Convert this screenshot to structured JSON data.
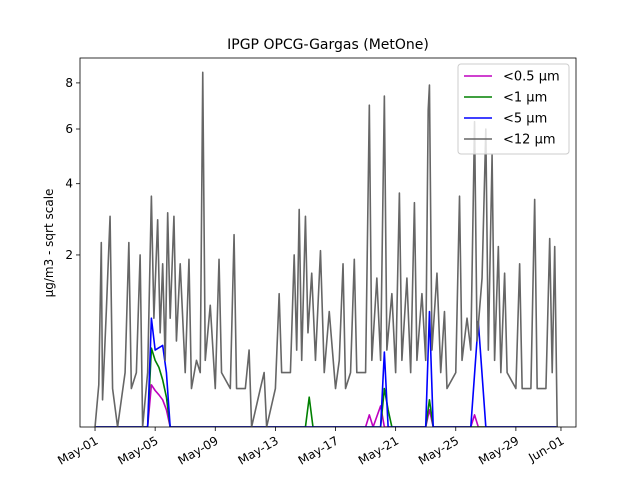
{
  "chart_data": {
    "type": "line",
    "title": "IPGP OPCG-Gargas (MetOne)",
    "xlabel": "",
    "ylabel": "µg/m3 - sqrt scale",
    "y_scale": "sqrt",
    "ylim": [
      0,
      9.2
    ],
    "x_range": [
      "2023-04-30T00:00",
      "2023-06-02T00:00"
    ],
    "x_ticks": [
      {
        "date": "2023-05-01",
        "label": "May-01"
      },
      {
        "date": "2023-05-05",
        "label": "May-05"
      },
      {
        "date": "2023-05-09",
        "label": "May-09"
      },
      {
        "date": "2023-05-13",
        "label": "May-13"
      },
      {
        "date": "2023-05-17",
        "label": "May-17"
      },
      {
        "date": "2023-05-21",
        "label": "May-21"
      },
      {
        "date": "2023-05-25",
        "label": "May-25"
      },
      {
        "date": "2023-05-29",
        "label": "May-29"
      },
      {
        "date": "2023-06-01",
        "label": "Jun-01"
      }
    ],
    "y_ticks": [
      {
        "value": 2,
        "label": "2"
      },
      {
        "value": 4,
        "label": "4"
      },
      {
        "value": 6,
        "label": "6"
      },
      {
        "value": 8,
        "label": "8"
      }
    ],
    "legend_position": "top-right",
    "grid": false,
    "series": [
      {
        "name": "<0.5 µm",
        "color": "#bf00bf",
        "points": [
          [
            "2023-05-01T00:00",
            0.0
          ],
          [
            "2023-05-04T12:00",
            0.0
          ],
          [
            "2023-05-04T18:00",
            0.12
          ],
          [
            "2023-05-05T00:00",
            0.09
          ],
          [
            "2023-05-05T06:00",
            0.07
          ],
          [
            "2023-05-05T12:00",
            0.05
          ],
          [
            "2023-05-05T18:00",
            0.02
          ],
          [
            "2023-05-06T00:00",
            0.0
          ],
          [
            "2023-05-19T00:00",
            0.0
          ],
          [
            "2023-05-19T06:00",
            0.01
          ],
          [
            "2023-05-19T12:00",
            0.0
          ],
          [
            "2023-05-20T00:00",
            0.03
          ],
          [
            "2023-05-20T06:00",
            0.0
          ],
          [
            "2023-05-23T00:00",
            0.0
          ],
          [
            "2023-05-23T06:00",
            0.02
          ],
          [
            "2023-05-23T12:00",
            0.0
          ],
          [
            "2023-05-26T00:00",
            0.0
          ],
          [
            "2023-05-26T06:00",
            0.01
          ],
          [
            "2023-05-26T12:00",
            0.0
          ],
          [
            "2023-05-31T18:00",
            0.0
          ]
        ]
      },
      {
        "name": "<1 µm",
        "color": "#008000",
        "points": [
          [
            "2023-05-01T00:00",
            0.0
          ],
          [
            "2023-05-04T12:00",
            0.0
          ],
          [
            "2023-05-04T18:00",
            0.42
          ],
          [
            "2023-05-05T00:00",
            0.3
          ],
          [
            "2023-05-05T06:00",
            0.24
          ],
          [
            "2023-05-05T12:00",
            0.15
          ],
          [
            "2023-05-05T18:00",
            0.06
          ],
          [
            "2023-05-06T00:00",
            0.0
          ],
          [
            "2023-05-15T00:00",
            0.0
          ],
          [
            "2023-05-15T06:00",
            0.06
          ],
          [
            "2023-05-15T12:00",
            0.0
          ],
          [
            "2023-05-20T00:00",
            0.0
          ],
          [
            "2023-05-20T06:00",
            0.1
          ],
          [
            "2023-05-20T12:00",
            0.02
          ],
          [
            "2023-05-20T18:00",
            0.0
          ],
          [
            "2023-05-23T00:00",
            0.0
          ],
          [
            "2023-05-23T06:00",
            0.05
          ],
          [
            "2023-05-23T12:00",
            0.0
          ],
          [
            "2023-05-31T18:00",
            0.0
          ]
        ]
      },
      {
        "name": "<5 µm",
        "color": "#0000ff",
        "points": [
          [
            "2023-05-01T00:00",
            0.0
          ],
          [
            "2023-05-04T12:00",
            0.0
          ],
          [
            "2023-05-04T18:00",
            0.8
          ],
          [
            "2023-05-05T00:00",
            0.4
          ],
          [
            "2023-05-05T12:00",
            0.45
          ],
          [
            "2023-05-05T18:00",
            0.2
          ],
          [
            "2023-05-06T00:00",
            0.0
          ],
          [
            "2023-05-20T00:00",
            0.0
          ],
          [
            "2023-05-20T06:00",
            0.38
          ],
          [
            "2023-05-20T12:00",
            0.0
          ],
          [
            "2023-05-23T00:00",
            0.0
          ],
          [
            "2023-05-23T06:00",
            0.9
          ],
          [
            "2023-05-23T12:00",
            0.0
          ],
          [
            "2023-05-26T00:00",
            0.0
          ],
          [
            "2023-05-26T12:00",
            0.75
          ],
          [
            "2023-05-27T00:00",
            0.0
          ],
          [
            "2023-05-31T18:00",
            0.0
          ]
        ]
      },
      {
        "name": "<12 µm",
        "color": "#666666",
        "points": [
          [
            "2023-05-01T00:00",
            0.0
          ],
          [
            "2023-05-01T06:00",
            0.12
          ],
          [
            "2023-05-01T10:00",
            2.3
          ],
          [
            "2023-05-01T12:00",
            0.05
          ],
          [
            "2023-05-01T18:00",
            0.9
          ],
          [
            "2023-05-02T00:00",
            3.0
          ],
          [
            "2023-05-02T04:00",
            0.1
          ],
          [
            "2023-05-02T12:00",
            0.0
          ],
          [
            "2023-05-03T00:00",
            0.2
          ],
          [
            "2023-05-03T06:00",
            2.3
          ],
          [
            "2023-05-03T10:00",
            0.1
          ],
          [
            "2023-05-03T18:00",
            0.2
          ],
          [
            "2023-05-04T00:00",
            2.0
          ],
          [
            "2023-05-04T04:00",
            0.0
          ],
          [
            "2023-05-04T12:00",
            0.2
          ],
          [
            "2023-05-04T18:00",
            3.6
          ],
          [
            "2023-05-04T22:00",
            0.8
          ],
          [
            "2023-05-05T04:00",
            2.9
          ],
          [
            "2023-05-05T08:00",
            0.6
          ],
          [
            "2023-05-05T12:00",
            1.8
          ],
          [
            "2023-05-05T16:00",
            0.3
          ],
          [
            "2023-05-05T20:00",
            3.1
          ],
          [
            "2023-05-06T00:00",
            0.8
          ],
          [
            "2023-05-06T06:00",
            3.0
          ],
          [
            "2023-05-06T10:00",
            0.5
          ],
          [
            "2023-05-06T16:00",
            1.8
          ],
          [
            "2023-05-07T00:00",
            0.2
          ],
          [
            "2023-05-07T06:00",
            1.9
          ],
          [
            "2023-05-07T10:00",
            0.1
          ],
          [
            "2023-05-07T18:00",
            0.3
          ],
          [
            "2023-05-08T00:00",
            0.2
          ],
          [
            "2023-05-08T04:00",
            8.5
          ],
          [
            "2023-05-08T08:00",
            0.3
          ],
          [
            "2023-05-08T16:00",
            1.0
          ],
          [
            "2023-05-09T00:00",
            0.1
          ],
          [
            "2023-05-09T06:00",
            1.9
          ],
          [
            "2023-05-09T10:00",
            0.2
          ],
          [
            "2023-05-10T00:00",
            0.1
          ],
          [
            "2023-05-10T06:00",
            2.5
          ],
          [
            "2023-05-10T10:00",
            0.1
          ],
          [
            "2023-05-11T00:00",
            0.1
          ],
          [
            "2023-05-11T06:00",
            0.4
          ],
          [
            "2023-05-11T10:00",
            0.0
          ],
          [
            "2023-05-12T00:00",
            0.1
          ],
          [
            "2023-05-12T06:00",
            0.2
          ],
          [
            "2023-05-12T10:00",
            0.0
          ],
          [
            "2023-05-13T00:00",
            0.1
          ],
          [
            "2023-05-13T06:00",
            1.2
          ],
          [
            "2023-05-13T10:00",
            0.2
          ],
          [
            "2023-05-14T00:00",
            0.2
          ],
          [
            "2023-05-14T06:00",
            2.0
          ],
          [
            "2023-05-14T10:00",
            0.4
          ],
          [
            "2023-05-14T14:00",
            3.2
          ],
          [
            "2023-05-14T18:00",
            0.3
          ],
          [
            "2023-05-15T00:00",
            3.0
          ],
          [
            "2023-05-15T04:00",
            0.6
          ],
          [
            "2023-05-15T10:00",
            1.6
          ],
          [
            "2023-05-15T16:00",
            0.3
          ],
          [
            "2023-05-16T00:00",
            2.1
          ],
          [
            "2023-05-16T06:00",
            0.2
          ],
          [
            "2023-05-16T14:00",
            0.9
          ],
          [
            "2023-05-17T00:00",
            0.1
          ],
          [
            "2023-05-17T06:00",
            0.3
          ],
          [
            "2023-05-17T12:00",
            1.8
          ],
          [
            "2023-05-17T16:00",
            0.1
          ],
          [
            "2023-05-18T00:00",
            0.2
          ],
          [
            "2023-05-18T06:00",
            1.9
          ],
          [
            "2023-05-18T10:00",
            0.2
          ],
          [
            "2023-05-19T00:00",
            0.2
          ],
          [
            "2023-05-19T06:00",
            7.0
          ],
          [
            "2023-05-19T10:00",
            0.3
          ],
          [
            "2023-05-19T18:00",
            1.5
          ],
          [
            "2023-05-20T00:00",
            0.3
          ],
          [
            "2023-05-20T06:00",
            7.4
          ],
          [
            "2023-05-20T10:00",
            0.4
          ],
          [
            "2023-05-20T18:00",
            1.2
          ],
          [
            "2023-05-21T00:00",
            0.2
          ],
          [
            "2023-05-21T06:00",
            3.7
          ],
          [
            "2023-05-21T10:00",
            0.3
          ],
          [
            "2023-05-21T18:00",
            1.5
          ],
          [
            "2023-05-22T00:00",
            0.2
          ],
          [
            "2023-05-22T06:00",
            3.4
          ],
          [
            "2023-05-22T10:00",
            0.3
          ],
          [
            "2023-05-22T18:00",
            1.2
          ],
          [
            "2023-05-23T00:00",
            0.3
          ],
          [
            "2023-05-23T04:00",
            6.8
          ],
          [
            "2023-05-23T06:00",
            7.9
          ],
          [
            "2023-05-23T10:00",
            0.4
          ],
          [
            "2023-05-23T18:00",
            1.6
          ],
          [
            "2023-05-24T00:00",
            0.2
          ],
          [
            "2023-05-24T06:00",
            0.9
          ],
          [
            "2023-05-24T10:00",
            0.1
          ],
          [
            "2023-05-25T00:00",
            0.2
          ],
          [
            "2023-05-25T06:00",
            3.6
          ],
          [
            "2023-05-25T10:00",
            0.3
          ],
          [
            "2023-05-25T18:00",
            0.8
          ],
          [
            "2023-05-26T00:00",
            0.4
          ],
          [
            "2023-05-26T06:00",
            6.3
          ],
          [
            "2023-05-26T10:00",
            0.5
          ],
          [
            "2023-05-26T18:00",
            1.5
          ],
          [
            "2023-05-27T00:00",
            6.0
          ],
          [
            "2023-05-27T04:00",
            0.4
          ],
          [
            "2023-05-27T10:00",
            5.0
          ],
          [
            "2023-05-27T14:00",
            0.3
          ],
          [
            "2023-05-27T20:00",
            2.2
          ],
          [
            "2023-05-28T00:00",
            0.2
          ],
          [
            "2023-05-28T06:00",
            1.6
          ],
          [
            "2023-05-28T10:00",
            0.2
          ],
          [
            "2023-05-29T00:00",
            0.1
          ],
          [
            "2023-05-29T06:00",
            1.8
          ],
          [
            "2023-05-29T10:00",
            0.1
          ],
          [
            "2023-05-30T00:00",
            0.1
          ],
          [
            "2023-05-30T06:00",
            3.5
          ],
          [
            "2023-05-30T10:00",
            0.1
          ],
          [
            "2023-05-31T00:00",
            0.1
          ],
          [
            "2023-05-31T06:00",
            2.4
          ],
          [
            "2023-05-31T10:00",
            0.2
          ],
          [
            "2023-05-31T14:00",
            2.2
          ],
          [
            "2023-05-31T18:00",
            0.0
          ]
        ]
      }
    ]
  }
}
